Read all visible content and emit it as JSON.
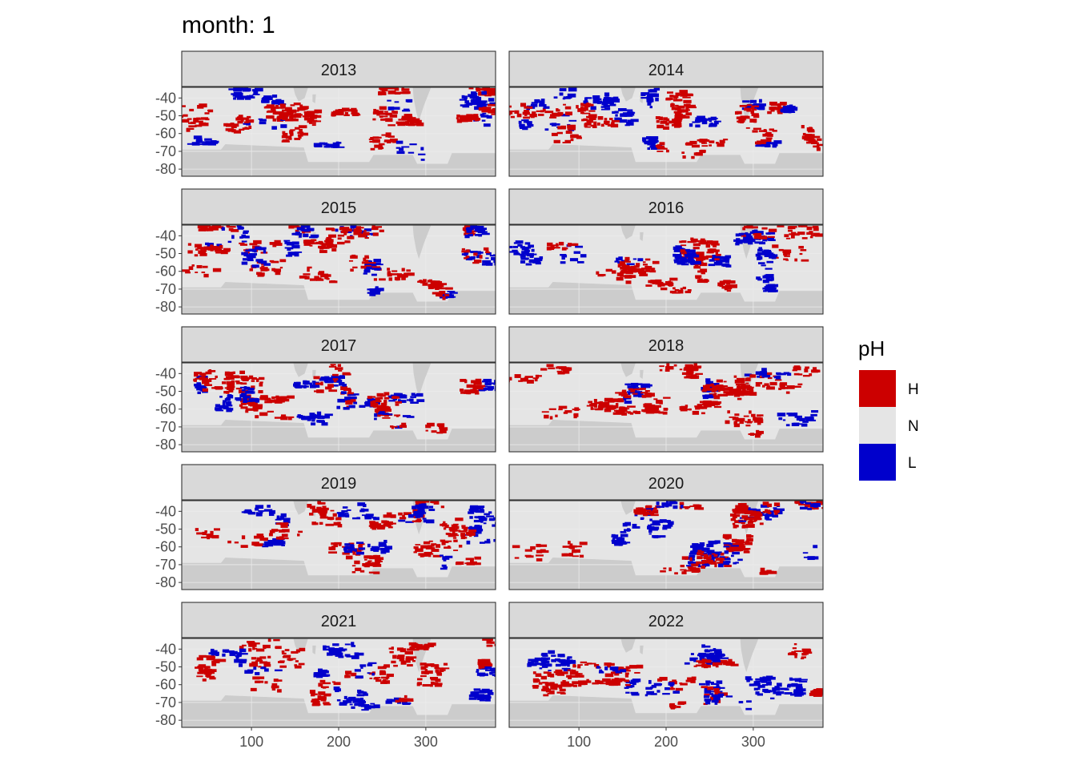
{
  "chart_data": {
    "type": "heatmap",
    "title": "month: 1",
    "facets": [
      "2013",
      "2014",
      "2015",
      "2016",
      "2017",
      "2018",
      "2019",
      "2020",
      "2021",
      "2022"
    ],
    "ncol": 2,
    "xlabel": "",
    "ylabel": "",
    "x_ticks": [
      100,
      200,
      300
    ],
    "y_ticks": [
      -40,
      -50,
      -60,
      -70,
      -80
    ],
    "xlim": [
      20,
      380
    ],
    "ylim": [
      -84,
      -34
    ],
    "grid": true,
    "legend": {
      "title": "pH",
      "position": "right",
      "entries": [
        {
          "label": "H",
          "color": "#cc0000"
        },
        {
          "label": "N",
          "color": "#e5e5e5"
        },
        {
          "label": "L",
          "color": "#0000cc"
        }
      ]
    },
    "land_color": "#cccccc"
  }
}
